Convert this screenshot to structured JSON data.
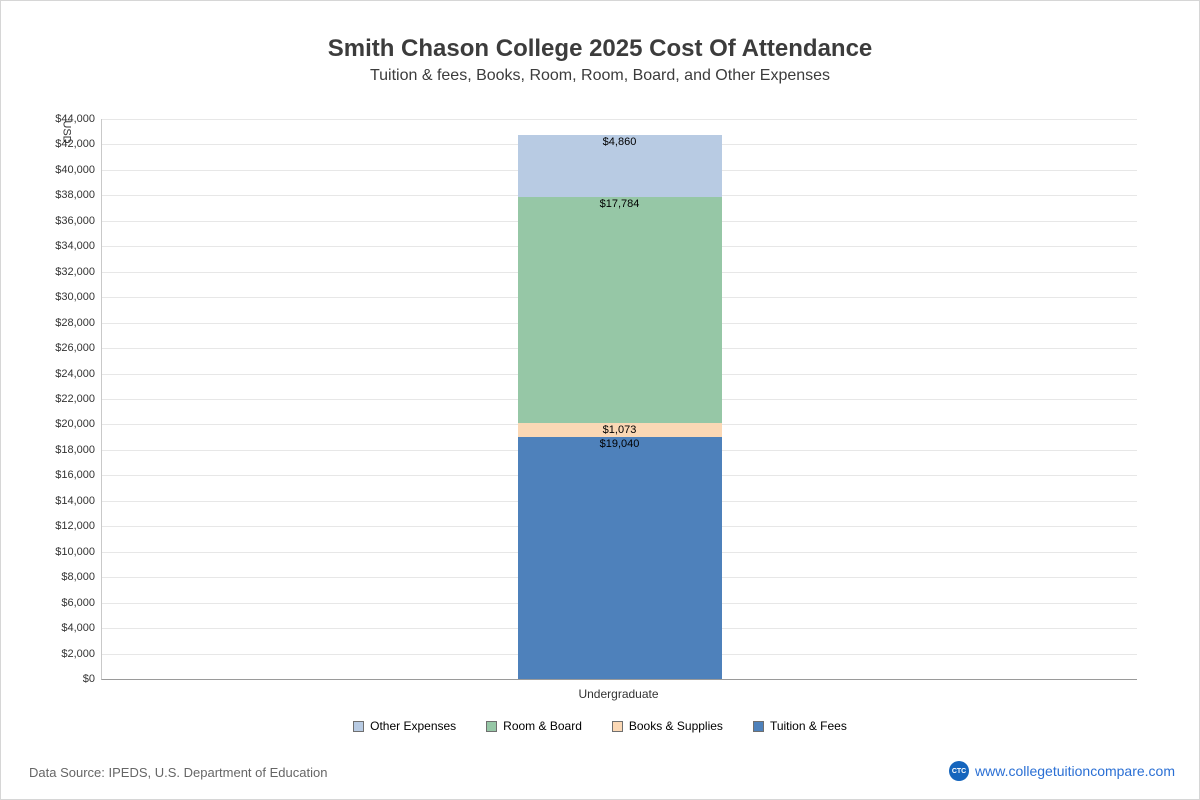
{
  "page": {
    "title": "Smith Chason College 2025 Cost Of Attendance",
    "subtitle": "Tuition & fees, Books, Room, Room, Board, and Other Expenses",
    "footer": {
      "data_source": "Data Source: IPEDS, U.S. Department of Education",
      "site_logo": "CTC",
      "site_label": "www.collegetuitioncompare.com"
    }
  },
  "chart_data": {
    "type": "bar",
    "stacked": true,
    "title": "Smith Chason College 2025 Cost Of Attendance",
    "subtitle": "Tuition & fees, Books, Room, Room, Board, and Other Expenses",
    "categories": [
      "Undergraduate"
    ],
    "series": [
      {
        "name": "Tuition & Fees",
        "values": [
          19040
        ],
        "label": "$19,040",
        "color": "#4e81bb"
      },
      {
        "name": "Books & Supplies",
        "values": [
          1073
        ],
        "label": "$1,073",
        "color": "#fbd8b5"
      },
      {
        "name": "Room & Board",
        "values": [
          17784
        ],
        "label": "$17,784",
        "color": "#96c7a6"
      },
      {
        "name": "Other Expenses",
        "values": [
          4860
        ],
        "label": "$4,860",
        "color": "#b8cbe3"
      }
    ],
    "legend": [
      {
        "label": "Other Expenses",
        "color": "#b8cbe3"
      },
      {
        "label": "Room & Board",
        "color": "#96c7a6"
      },
      {
        "label": "Books & Supplies",
        "color": "#fbd8b5"
      },
      {
        "label": "Tuition & Fees",
        "color": "#4e81bb"
      }
    ],
    "legend_position": "bottom",
    "grid": true,
    "xlabel": "",
    "ylabel": "USD",
    "ylim": [
      0,
      44000
    ],
    "ytick_step": 2000
  }
}
